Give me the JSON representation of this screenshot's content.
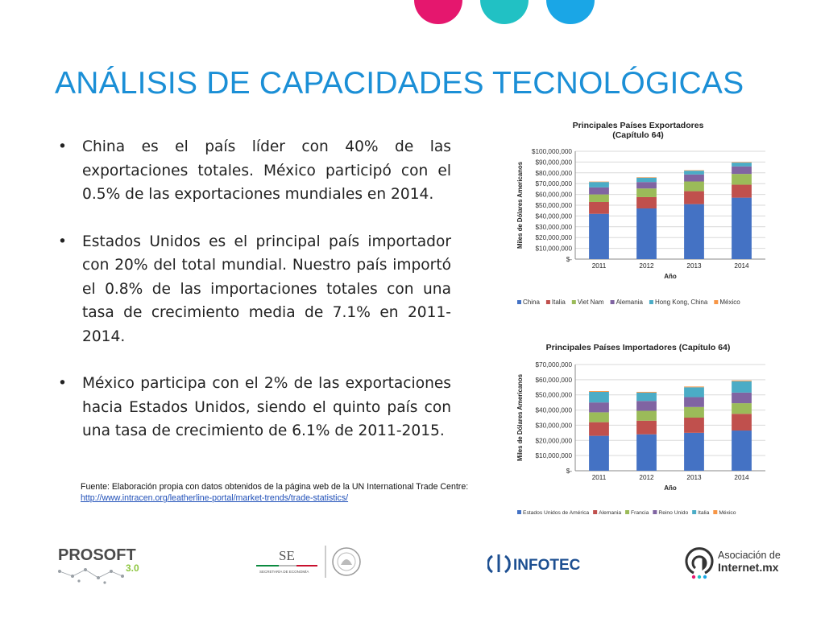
{
  "header": {
    "title": "ANÁLISIS DE CAPACIDADES TECNOLÓGICAS"
  },
  "colors": {
    "magenta": "#e5176e",
    "teal": "#21c1c4",
    "blue": "#1aa6e6",
    "title": "#1b8fd6"
  },
  "bullets": [
    "China es el país líder con 40% de las exportaciones totales. México participó con el 0.5% de las exportaciones mundiales en 2014.",
    "Estados Unidos es el principal país importador con 20% del total mundial.  Nuestro país importó el 0.8% de las importaciones totales con una tasa de crecimiento media de 7.1% en 2011-2014.",
    "México participa con el 2% de las exportaciones hacia Estados Unidos, siendo el quinto país con una tasa de crecimiento de 6.1% de 2011-2015."
  ],
  "source": {
    "text": "Fuente: Elaboración propia con datos obtenidos de la página web de la UN International Trade Centre:",
    "link": "http://www.intracen.org/leatherline-portal/market-trends/trade-statistics/"
  },
  "logos": {
    "prosoft": {
      "name": "PROSOFT",
      "version": "3.0"
    },
    "se": {
      "name": "SE",
      "subtitle": "SECRETARÍA DE ECONOMÍA"
    },
    "infotec": {
      "name": "INFOTEC"
    },
    "aimx": {
      "line1": "Asociación de",
      "line2": "Internet.mx"
    }
  },
  "chart_data": [
    {
      "type": "bar",
      "stacked": true,
      "title": "Principales Países Exportadores",
      "subtitle": "(Capítulo  64)",
      "xlabel": "Año",
      "ylabel": "Miles de Dólares Americanos",
      "ylim": [
        0,
        100000000
      ],
      "yticks": [
        0,
        10000000,
        20000000,
        30000000,
        40000000,
        50000000,
        60000000,
        70000000,
        80000000,
        90000000,
        100000000
      ],
      "ytick_labels": [
        "$-",
        "$10,000,000",
        "$20,000,000",
        "$30,000,000",
        "$40,000,000",
        "$50,000,000",
        "$60,000,000",
        "$70,000,000",
        "$80,000,000",
        "$90,000,000",
        "$100,000,000"
      ],
      "categories": [
        "2011",
        "2012",
        "2013",
        "2014"
      ],
      "legend_position": "bottom",
      "grid": true,
      "series": [
        {
          "name": "China",
          "color": "#4472c4",
          "values": [
            42000000,
            47000000,
            51000000,
            57000000
          ]
        },
        {
          "name": "Italia",
          "color": "#c0504d",
          "values": [
            11000000,
            10500000,
            12000000,
            12000000
          ]
        },
        {
          "name": "Viet Nam",
          "color": "#9bbb59",
          "values": [
            7000000,
            8000000,
            9000000,
            10000000
          ]
        },
        {
          "name": "Alemania",
          "color": "#8064a2",
          "values": [
            6500000,
            6000000,
            6500000,
            7000000
          ]
        },
        {
          "name": "Hong Kong, China",
          "color": "#4bacc6",
          "values": [
            5000000,
            4000000,
            3500000,
            3500000
          ]
        },
        {
          "name": "México",
          "color": "#f79646",
          "values": [
            400000,
            450000,
            450000,
            450000
          ]
        }
      ]
    },
    {
      "type": "bar",
      "stacked": true,
      "title": "Principales Países Importadores (Capítulo 64)",
      "xlabel": "Año",
      "ylabel": "Miles de Dólares Americanos",
      "ylim": [
        0,
        70000000
      ],
      "yticks": [
        0,
        10000000,
        20000000,
        30000000,
        40000000,
        50000000,
        60000000,
        70000000
      ],
      "ytick_labels": [
        "$-",
        "$10,000,000",
        "$20,000,000",
        "$30,000,000",
        "$40,000,000",
        "$50,000,000",
        "$60,000,000",
        "$70,000,000"
      ],
      "categories": [
        "2011",
        "2012",
        "2013",
        "2014"
      ],
      "legend_position": "bottom",
      "grid": true,
      "series": [
        {
          "name": "Estados Unidos de América",
          "color": "#4472c4",
          "values": [
            23000000,
            24000000,
            25000000,
            26500000
          ]
        },
        {
          "name": "Alemania",
          "color": "#c0504d",
          "values": [
            9000000,
            9000000,
            10000000,
            11000000
          ]
        },
        {
          "name": "Francia",
          "color": "#9bbb59",
          "values": [
            6500000,
            6500000,
            7000000,
            7000000
          ]
        },
        {
          "name": "Reino Unido",
          "color": "#8064a2",
          "values": [
            6500000,
            6500000,
            6500000,
            7000000
          ]
        },
        {
          "name": "Italia",
          "color": "#4bacc6",
          "values": [
            7000000,
            5500000,
            6500000,
            7500000
          ]
        },
        {
          "name": "México",
          "color": "#f79646",
          "values": [
            500000,
            500000,
            500000,
            500000
          ]
        }
      ]
    }
  ]
}
